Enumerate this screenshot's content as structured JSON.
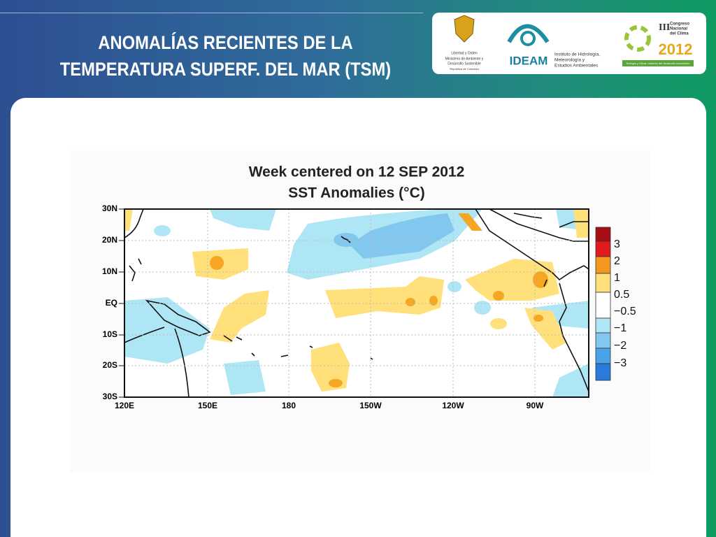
{
  "header": {
    "title": [
      "ANOMALÍAS RECIENTES DE LA",
      "TEMPERATURA SUPERF. DEL MAR (TSM)"
    ]
  },
  "logos": {
    "ministry": [
      "Libertad y Orden",
      "Ministerio de Ambiente y",
      "Desarrollo Sostenible",
      "República de Colombia"
    ],
    "ideam": {
      "name": "IDEAM",
      "full": [
        "Instituto de Hidrología,",
        "Meteorología y",
        "Estudios Ambientales"
      ]
    },
    "congress": {
      "lines": [
        "Congreso",
        "Nacional",
        "del Clima"
      ],
      "numeral": "III",
      "year": "2012",
      "motto": "Energía y Clima: motores del desarrollo económico"
    }
  },
  "map": {
    "title": [
      "Week centered on 12 SEP 2012",
      "SST Anomalies (°C)"
    ],
    "lat_labels": [
      "30N",
      "20N",
      "10N",
      "EQ",
      "10S",
      "20S",
      "30S"
    ],
    "lon_labels": [
      "120E",
      "150E",
      "180",
      "150W",
      "120W",
      "90W"
    ],
    "colorbar_labels": [
      "3",
      "2",
      "1",
      "0.5",
      "−0.5",
      "−1",
      "−2",
      "−3"
    ]
  }
}
